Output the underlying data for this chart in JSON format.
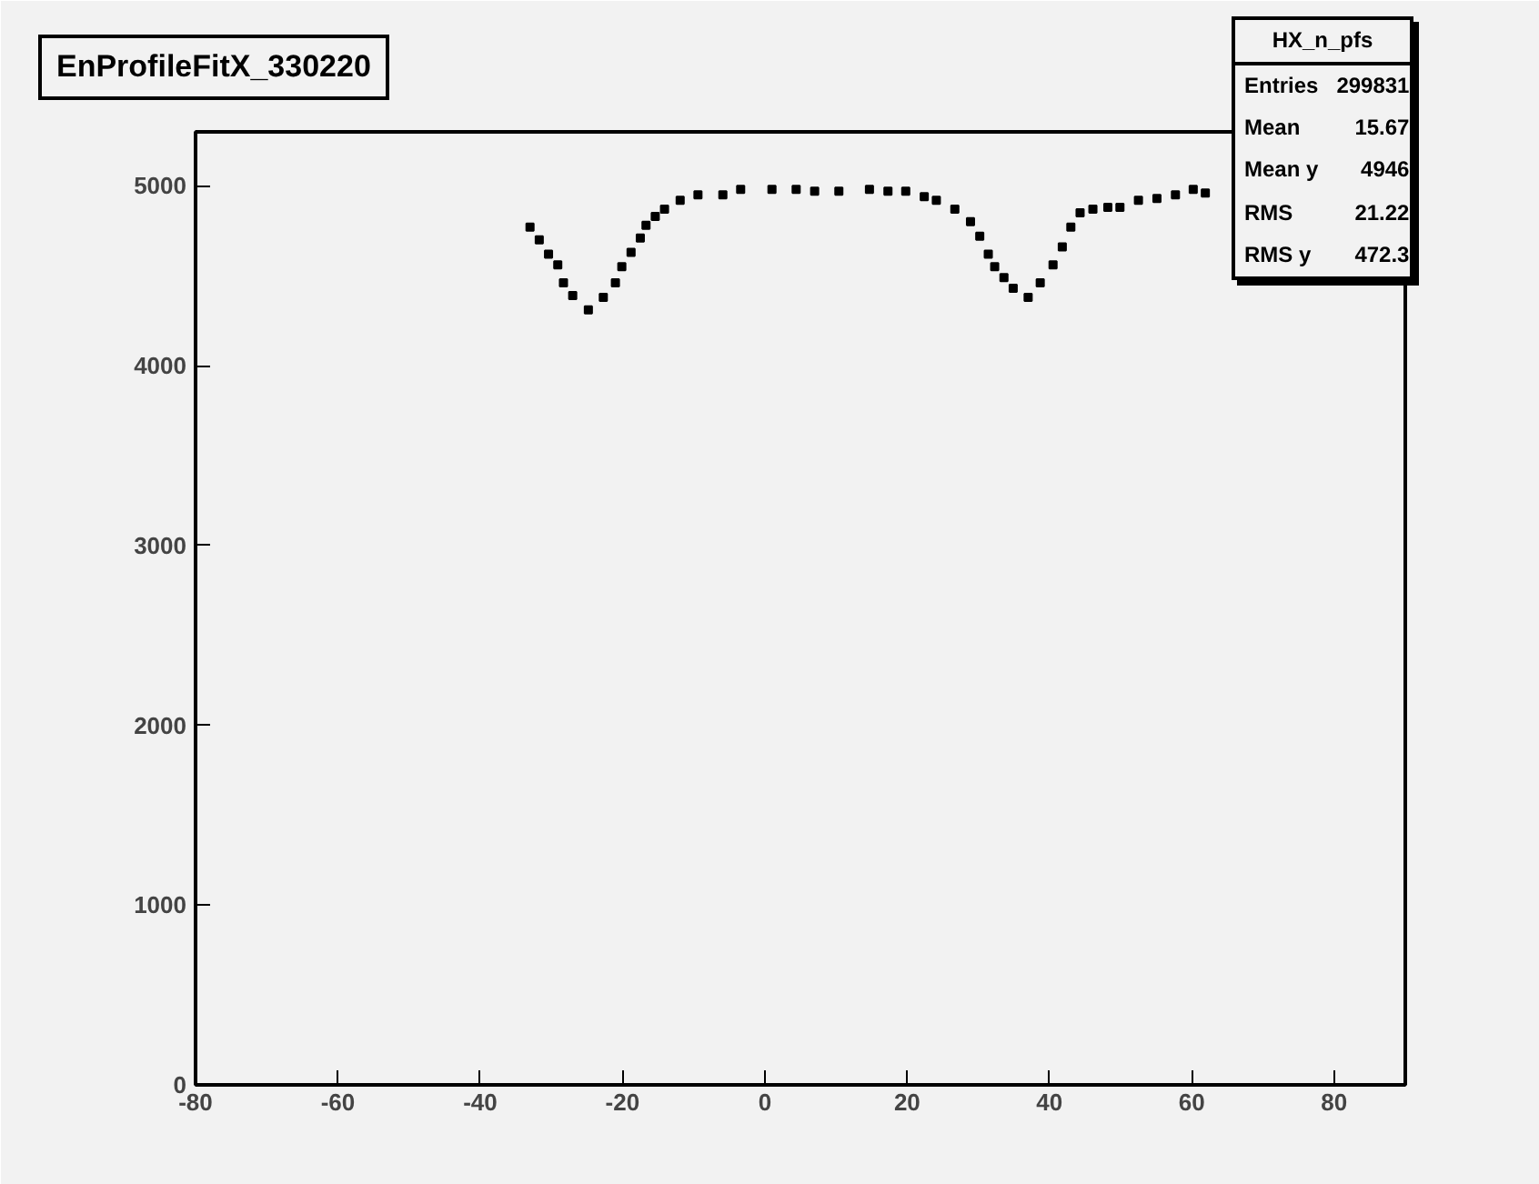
{
  "chart_data": {
    "type": "scatter",
    "title": "EnProfileFitX_330220",
    "annotations": [
      "HX_n_pfs",
      "Entries 299831",
      "Mean 15.67",
      "Mean y 4946",
      "RMS 21.22",
      "RMS y 472.3"
    ],
    "x": [
      -33,
      -31.7,
      -30.4,
      -29.1,
      -28.3,
      -27,
      -24.8,
      -22.7,
      -21,
      -20.1,
      -18.8,
      -17.5,
      -16.7,
      -15.4,
      -14.1,
      -11.9,
      -9.4,
      -5.9,
      -3.4,
      1,
      4.4,
      7,
      10.4,
      14.7,
      17.3,
      19.8,
      22.4,
      24.1,
      26.7,
      28.9,
      30.2,
      31.4,
      32.3,
      33.6,
      34.9,
      37,
      38.7,
      40.5,
      41.8,
      43,
      44.3,
      46.1,
      48.2,
      49.9,
      52.5,
      55.1,
      57.7,
      60.2,
      61.9
    ],
    "values": [
      4770,
      4700,
      4620,
      4560,
      4460,
      4390,
      4310,
      4380,
      4460,
      4550,
      4630,
      4710,
      4780,
      4830,
      4870,
      4920,
      4950,
      4950,
      4980,
      4980,
      4980,
      4970,
      4970,
      4980,
      4970,
      4970,
      4940,
      4920,
      4870,
      4800,
      4720,
      4620,
      4550,
      4490,
      4430,
      4380,
      4460,
      4560,
      4660,
      4770,
      4850,
      4870,
      4880,
      4880,
      4920,
      4930,
      4950,
      4980,
      4960
    ],
    "color": "#000000",
    "marker": "square",
    "xlim": [
      -80,
      90
    ],
    "ylim": [
      0,
      5300
    ],
    "xticks": [
      -80,
      -60,
      -40,
      -20,
      0,
      20,
      40,
      60,
      80
    ],
    "yticks": [
      0,
      1000,
      2000,
      3000,
      4000,
      5000
    ],
    "grid": false
  }
}
